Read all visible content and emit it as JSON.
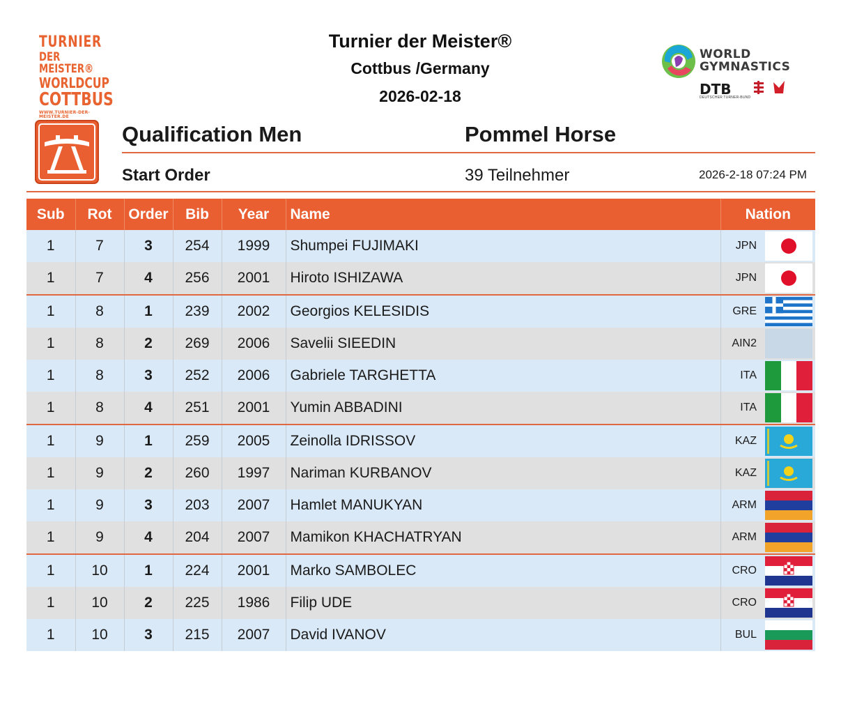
{
  "logo_left": {
    "line1": "TURNIER",
    "line2": "DER MEISTER®",
    "line3": "WORLDCUP",
    "line4": "COTTBUS",
    "line5": "WWW.TURNIER-DER-MEISTER.DE"
  },
  "header": {
    "title": "Turnier der Meister®",
    "location": "Cottbus /Germany",
    "date": "2026-02-18"
  },
  "logo_right": {
    "wg_line1": "WORLD",
    "wg_line2": "GYMNASTICS",
    "dtb": "DTB",
    "dtb_sub": "DEUTSCHER TURNER-BUND"
  },
  "section": {
    "phase": "Qualification Men",
    "apparatus": "Pommel Horse",
    "list_type": "Start Order",
    "participants": "39 Teilnehmer",
    "printed_time": "2026-2-18 07:24 PM"
  },
  "colors": {
    "accent": "#ea5f31",
    "row_blue": "#dae9f7",
    "row_grey": "#e0e0e0"
  },
  "table": {
    "columns": [
      "Sub",
      "Rot",
      "Order",
      "Bib",
      "Year",
      "Name",
      "Nation"
    ],
    "rows": [
      {
        "sub": "1",
        "rot": "7",
        "order": "3",
        "bib": "254",
        "year": "1999",
        "name": "Shumpei FUJIMAKI",
        "nation": "JPN",
        "flag": "jpn"
      },
      {
        "sub": "1",
        "rot": "7",
        "order": "4",
        "bib": "256",
        "year": "2001",
        "name": "Hiroto ISHIZAWA",
        "nation": "JPN",
        "flag": "jpn"
      },
      {
        "sub": "1",
        "rot": "8",
        "order": "1",
        "bib": "239",
        "year": "2002",
        "name": "Georgios KELESIDIS",
        "nation": "GRE",
        "flag": "gre"
      },
      {
        "sub": "1",
        "rot": "8",
        "order": "2",
        "bib": "269",
        "year": "2006",
        "name": "Savelii SIEEDIN",
        "nation": "AIN2",
        "flag": "none"
      },
      {
        "sub": "1",
        "rot": "8",
        "order": "3",
        "bib": "252",
        "year": "2006",
        "name": "Gabriele TARGHETTA",
        "nation": "ITA",
        "flag": "ita"
      },
      {
        "sub": "1",
        "rot": "8",
        "order": "4",
        "bib": "251",
        "year": "2001",
        "name": "Yumin ABBADINI",
        "nation": "ITA",
        "flag": "ita"
      },
      {
        "sub": "1",
        "rot": "9",
        "order": "1",
        "bib": "259",
        "year": "2005",
        "name": "Zeinolla IDRISSOV",
        "nation": "KAZ",
        "flag": "kaz"
      },
      {
        "sub": "1",
        "rot": "9",
        "order": "2",
        "bib": "260",
        "year": "1997",
        "name": "Nariman KURBANOV",
        "nation": "KAZ",
        "flag": "kaz"
      },
      {
        "sub": "1",
        "rot": "9",
        "order": "3",
        "bib": "203",
        "year": "2007",
        "name": "Hamlet MANUKYAN",
        "nation": "ARM",
        "flag": "arm"
      },
      {
        "sub": "1",
        "rot": "9",
        "order": "4",
        "bib": "204",
        "year": "2007",
        "name": "Mamikon KHACHATRYAN",
        "nation": "ARM",
        "flag": "arm"
      },
      {
        "sub": "1",
        "rot": "10",
        "order": "1",
        "bib": "224",
        "year": "2001",
        "name": "Marko SAMBOLEC",
        "nation": "CRO",
        "flag": "cro"
      },
      {
        "sub": "1",
        "rot": "10",
        "order": "2",
        "bib": "225",
        "year": "1986",
        "name": "Filip UDE",
        "nation": "CRO",
        "flag": "cro"
      },
      {
        "sub": "1",
        "rot": "10",
        "order": "3",
        "bib": "215",
        "year": "2007",
        "name": "David IVANOV",
        "nation": "BUL",
        "flag": "bul"
      }
    ]
  }
}
